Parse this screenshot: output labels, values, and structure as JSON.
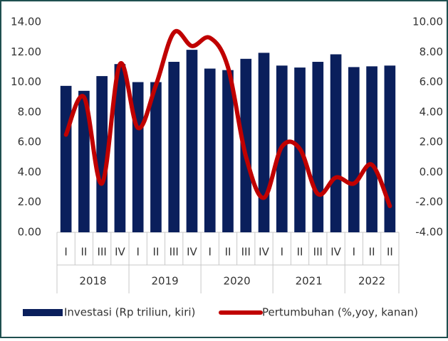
{
  "chart_data": {
    "type": "bar-line",
    "groups": [
      {
        "label": "2018",
        "categories": [
          "I",
          "II",
          "III",
          "IV"
        ]
      },
      {
        "label": "2019",
        "categories": [
          "I",
          "II",
          "III",
          "IV"
        ]
      },
      {
        "label": "2020",
        "categories": [
          "I",
          "II",
          "III",
          "IV"
        ]
      },
      {
        "label": "2021",
        "categories": [
          "I",
          "II",
          "III",
          "IV"
        ]
      },
      {
        "label": "2022",
        "categories": [
          "I",
          "II",
          "II"
        ]
      }
    ],
    "series": [
      {
        "name": "Investasi (Rp triliun, kiri)",
        "type": "bar",
        "color": "#0a1f5c",
        "values": [
          9.75,
          9.42,
          10.4,
          11.2,
          10.0,
          10.0,
          11.35,
          12.15,
          10.9,
          10.8,
          11.55,
          11.95,
          11.1,
          10.97,
          11.35,
          11.85,
          11.0,
          11.05,
          11.1
        ]
      },
      {
        "name": "Pertumbuhan (%,yoy, kanan)",
        "type": "line",
        "axis": "y2",
        "color": "#c00000",
        "values": [
          2.5,
          5.0,
          -0.75,
          7.2,
          2.95,
          5.8,
          9.3,
          8.4,
          8.95,
          7.0,
          1.05,
          -1.7,
          1.7,
          1.55,
          -1.45,
          -0.35,
          -0.75,
          0.5,
          -2.25
        ]
      }
    ],
    "ylim": [
      0,
      14
    ],
    "yticks": [
      {
        "value": 0,
        "label": "0.00"
      },
      {
        "value": 2,
        "label": "2.00"
      },
      {
        "value": 4,
        "label": "4.00"
      },
      {
        "value": 6,
        "label": "6.00"
      },
      {
        "value": 8,
        "label": "8.00"
      },
      {
        "value": 10,
        "label": "10.00"
      },
      {
        "value": 12,
        "label": "12.00"
      },
      {
        "value": 14,
        "label": "14.00"
      }
    ],
    "y2lim": [
      -4,
      10
    ],
    "y2ticks": [
      {
        "value": -4,
        "label": "-4.00"
      },
      {
        "value": -2,
        "label": "-2.00"
      },
      {
        "value": 0,
        "label": "0.00"
      },
      {
        "value": 2,
        "label": "2.00"
      },
      {
        "value": 4,
        "label": "4.00"
      },
      {
        "value": 6,
        "label": "6.00"
      },
      {
        "value": 8,
        "label": "8.00"
      },
      {
        "value": 10,
        "label": "10.00"
      }
    ],
    "grid": false,
    "legend": "bottom"
  }
}
